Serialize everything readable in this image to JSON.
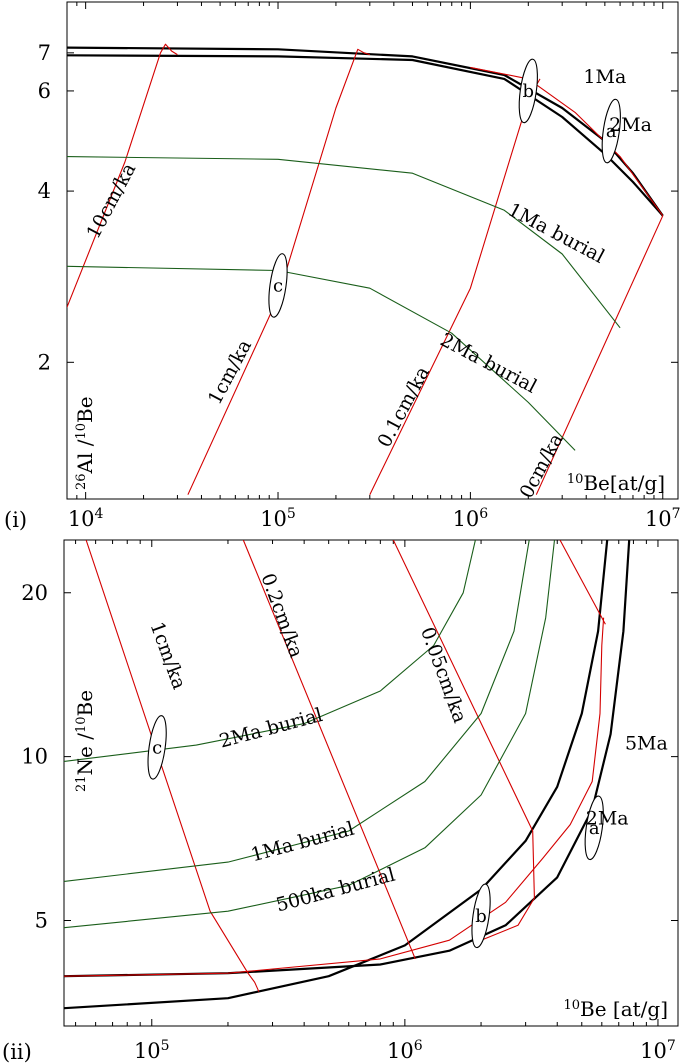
{
  "chart_data": [
    {
      "panel": "(i)",
      "type": "line",
      "xscale": "log",
      "yscale": "log",
      "xlim": [
        8000,
        12000000
      ],
      "ylim": [
        1.15,
        8.6
      ],
      "xticks": [
        {
          "value": 10000,
          "base": "10",
          "exp": "4"
        },
        {
          "value": 100000,
          "base": "10",
          "exp": "5"
        },
        {
          "value": 1000000,
          "base": "10",
          "exp": "6"
        },
        {
          "value": 10000000,
          "base": "10",
          "exp": "7"
        }
      ],
      "yticks": [
        {
          "value": 2,
          "label": "2"
        },
        {
          "value": 4,
          "label": "4"
        },
        {
          "value": 6,
          "label": "6"
        },
        {
          "value": 7,
          "label": "7"
        }
      ],
      "xlabel": {
        "sup": "10",
        "rest": "Be[at/g]"
      },
      "ylabel": {
        "sup1": "26",
        "mid": "Al /",
        "sup2": "10",
        "rest": "Be"
      },
      "series": [
        {
          "kind": "envelope",
          "color": "#000000",
          "points": [
            [
              8000,
              7.15
            ],
            [
              100000,
              7.1
            ],
            [
              500000,
              6.9
            ],
            [
              1500000,
              6.4
            ],
            [
              3000000,
              5.6
            ],
            [
              5000000,
              4.9
            ],
            [
              7000000,
              4.3
            ],
            [
              10000000,
              3.62
            ]
          ]
        },
        {
          "kind": "envelope",
          "color": "#000000",
          "points": [
            [
              8000,
              6.93
            ],
            [
              100000,
              6.9
            ],
            [
              500000,
              6.8
            ],
            [
              1500000,
              6.3
            ],
            [
              3000000,
              5.4
            ],
            [
              5000000,
              4.65
            ],
            [
              7000000,
              4.15
            ],
            [
              10000000,
              3.62
            ]
          ]
        },
        {
          "name": "10cm/ka",
          "kind": "erosion",
          "color": "#d40000",
          "points": [
            [
              8000,
              2.5
            ],
            [
              16000,
              4.5
            ],
            [
              24500,
              7.0
            ],
            [
              26000,
              7.25
            ],
            [
              28000,
              7.05
            ],
            [
              30000,
              6.95
            ]
          ]
        },
        {
          "name": "1cm/ka",
          "kind": "erosion",
          "color": "#d40000",
          "points": [
            [
              34000,
              1.17
            ],
            [
              100000,
              2.6
            ],
            [
              200000,
              5.6
            ],
            [
              260000,
              7.1
            ],
            [
              280000,
              7.0
            ],
            [
              300000,
              6.95
            ]
          ]
        },
        {
          "name": "0.1cm/ka",
          "kind": "erosion",
          "color": "#d40000",
          "points": [
            [
              300000,
              1.17
            ],
            [
              1000000,
              2.7
            ],
            [
              2000000,
              5.8
            ],
            [
              2300000,
              6.3
            ]
          ]
        },
        {
          "name": "0cm/ka",
          "kind": "erosion",
          "color": "#d40000",
          "points": [
            [
              2200000,
              1.17
            ],
            [
              10000000,
              3.62
            ]
          ]
        },
        {
          "kind": "erosion",
          "color": "#d40000",
          "points": [
            [
              1000000,
              6.6
            ],
            [
              2000000,
              6.3
            ],
            [
              3500000,
              5.5
            ],
            [
              6000000,
              4.6
            ],
            [
              10000000,
              3.62
            ]
          ]
        },
        {
          "name": "1Ma burial",
          "kind": "burial",
          "color": "#1a5e1a",
          "points": [
            [
              8000,
              4.6
            ],
            [
              100000,
              4.55
            ],
            [
              500000,
              4.3
            ],
            [
              1500000,
              3.7
            ],
            [
              3000000,
              3.1
            ],
            [
              6000000,
              2.3
            ]
          ]
        },
        {
          "name": "2Ma burial",
          "kind": "burial",
          "color": "#1a5e1a",
          "points": [
            [
              8000,
              2.95
            ],
            [
              100000,
              2.9
            ],
            [
              300000,
              2.7
            ],
            [
              800000,
              2.25
            ],
            [
              2000000,
              1.7
            ],
            [
              3500000,
              1.4
            ]
          ]
        }
      ],
      "labels": [
        {
          "text": "10cm/ka",
          "x": 14500,
          "y": 3.8,
          "rotate": -62
        },
        {
          "text": "1cm/ka",
          "x": 60000,
          "y": 1.9,
          "rotate": -62
        },
        {
          "text": "0.1cm/ka",
          "x": 480000,
          "y": 1.65,
          "rotate": -62
        },
        {
          "text": "0cm/ka",
          "x": 2500000,
          "y": 1.3,
          "rotate": -62
        },
        {
          "text": "1Ma burial",
          "x": 2700000,
          "y": 3.3,
          "rotate": 28
        },
        {
          "text": "2Ma burial",
          "x": 1200000,
          "y": 1.95,
          "rotate": 28
        },
        {
          "text": "1Ma",
          "x": 5000000,
          "y": 6.2,
          "rotate": 0
        },
        {
          "text": "2Ma",
          "x": 6800000,
          "y": 5.1,
          "rotate": 0
        }
      ],
      "markers": [
        {
          "text": "b",
          "x": 2000000,
          "y": 6.0
        },
        {
          "text": "a",
          "x": 5400000,
          "y": 5.1
        },
        {
          "text": "c",
          "x": 100000,
          "y": 2.73
        }
      ]
    },
    {
      "panel": "(ii)",
      "type": "line",
      "xscale": "log",
      "yscale": "log",
      "xlim": [
        45000,
        12000000
      ],
      "ylim": [
        3.2,
        25
      ],
      "xticks": [
        {
          "value": 100000,
          "base": "10",
          "exp": "5"
        },
        {
          "value": 1000000,
          "base": "10",
          "exp": "6"
        },
        {
          "value": 10000000,
          "base": "10",
          "exp": "7"
        }
      ],
      "yticks": [
        {
          "value": 5,
          "label": "5"
        },
        {
          "value": 10,
          "label": "10"
        },
        {
          "value": 20,
          "label": "20"
        }
      ],
      "xlabel": {
        "sup": "10",
        "rest": "Be [at/g]"
      },
      "ylabel": {
        "sup1": "21",
        "mid": "Ne /",
        "sup2": "10",
        "rest": "Be"
      },
      "series": [
        {
          "kind": "envelope",
          "color": "#000000",
          "points": [
            [
              45000,
              3.95
            ],
            [
              200000,
              4.0
            ],
            [
              800000,
              4.15
            ],
            [
              1500000,
              4.4
            ],
            [
              2500000,
              4.9
            ],
            [
              4000000,
              6.0
            ],
            [
              5500000,
              8.0
            ],
            [
              6500000,
              11.0
            ],
            [
              7300000,
              17.0
            ],
            [
              7700000,
              25.0
            ]
          ]
        },
        {
          "kind": "envelope",
          "color": "#000000",
          "points": [
            [
              45000,
              3.45
            ],
            [
              200000,
              3.6
            ],
            [
              500000,
              3.95
            ],
            [
              1000000,
              4.5
            ],
            [
              2000000,
              5.7
            ],
            [
              3000000,
              7.0
            ],
            [
              4000000,
              8.8
            ],
            [
              5000000,
              12.0
            ],
            [
              5800000,
              17.0
            ],
            [
              6300000,
              25.0
            ]
          ]
        },
        {
          "kind": "erosion",
          "color": "#d40000",
          "points": [
            [
              45000,
              3.95
            ],
            [
              200000,
              4.0
            ],
            [
              800000,
              4.25
            ],
            [
              1500000,
              4.6
            ],
            [
              2500000,
              5.4
            ],
            [
              3500000,
              6.5
            ],
            [
              4500000,
              7.5
            ],
            [
              5500000,
              9.0
            ],
            [
              5900000,
              12.0
            ],
            [
              6000000,
              16.0
            ],
            [
              6100000,
              18.0
            ]
          ]
        },
        {
          "name": "1cm/ka",
          "kind": "erosion",
          "color": "#d40000",
          "points": [
            [
              55000,
              25.0
            ],
            [
              170000,
              5.2
            ],
            [
              240000,
              4.0
            ],
            [
              255000,
              3.85
            ],
            [
              265000,
              3.7
            ]
          ]
        },
        {
          "name": "0.2cm/ka",
          "kind": "erosion",
          "color": "#d40000",
          "points": [
            [
              230000,
              25.0
            ],
            [
              1100000,
              4.25
            ]
          ]
        },
        {
          "name": "0.05cm/ka",
          "kind": "erosion",
          "color": "#d40000",
          "points": [
            [
              900000,
              25.0
            ],
            [
              3200000,
              7.3
            ],
            [
              3250000,
              5.5
            ],
            [
              2800000,
              4.9
            ],
            [
              2000000,
              4.6
            ]
          ]
        },
        {
          "kind": "erosion",
          "color": "#d40000",
          "points": [
            [
              4100000,
              25.0
            ],
            [
              6200000,
              17.5
            ]
          ]
        },
        {
          "name": "2Ma burial",
          "kind": "burial",
          "color": "#1a5e1a",
          "points": [
            [
              45000,
              9.8
            ],
            [
              150000,
              10.5
            ],
            [
              400000,
              11.5
            ],
            [
              800000,
              13.2
            ],
            [
              1300000,
              16.0
            ],
            [
              1700000,
              20.0
            ],
            [
              1900000,
              25.0
            ]
          ]
        },
        {
          "name": "1Ma burial",
          "kind": "burial",
          "color": "#1a5e1a",
          "points": [
            [
              45000,
              5.9
            ],
            [
              200000,
              6.4
            ],
            [
              600000,
              7.3
            ],
            [
              1200000,
              9.0
            ],
            [
              2000000,
              12.0
            ],
            [
              2700000,
              17.0
            ],
            [
              3100000,
              25.0
            ]
          ]
        },
        {
          "name": "500ka burial",
          "kind": "burial",
          "color": "#1a5e1a",
          "points": [
            [
              45000,
              4.85
            ],
            [
              200000,
              5.2
            ],
            [
              600000,
              5.8
            ],
            [
              1200000,
              6.8
            ],
            [
              2000000,
              8.5
            ],
            [
              3000000,
              12.0
            ],
            [
              3600000,
              18.0
            ],
            [
              3900000,
              25.0
            ]
          ]
        }
      ],
      "labels": [
        {
          "text": "1cm/ka",
          "x": 110000,
          "y": 15.2,
          "rotate": 70
        },
        {
          "text": "0.2cm/ka",
          "x": 310000,
          "y": 18.0,
          "rotate": 70
        },
        {
          "text": "0.05cm/ka",
          "x": 1350000,
          "y": 14.0,
          "rotate": 70
        },
        {
          "text": "2Ma burial",
          "x": 300000,
          "y": 11.0,
          "rotate": -15
        },
        {
          "text": "1Ma burial",
          "x": 400000,
          "y": 6.8,
          "rotate": -15
        },
        {
          "text": "500ka burial",
          "x": 540000,
          "y": 5.55,
          "rotate": -15
        },
        {
          "text": "5Ma",
          "x": 9000000,
          "y": 10.3,
          "rotate": 0
        },
        {
          "text": "2Ma",
          "x": 6300000,
          "y": 7.5,
          "rotate": 0
        }
      ],
      "markers": [
        {
          "text": "c",
          "x": 105000,
          "y": 10.4
        },
        {
          "text": "a",
          "x": 5600000,
          "y": 7.4
        },
        {
          "text": "b",
          "x": 2000000,
          "y": 5.1
        }
      ]
    }
  ]
}
